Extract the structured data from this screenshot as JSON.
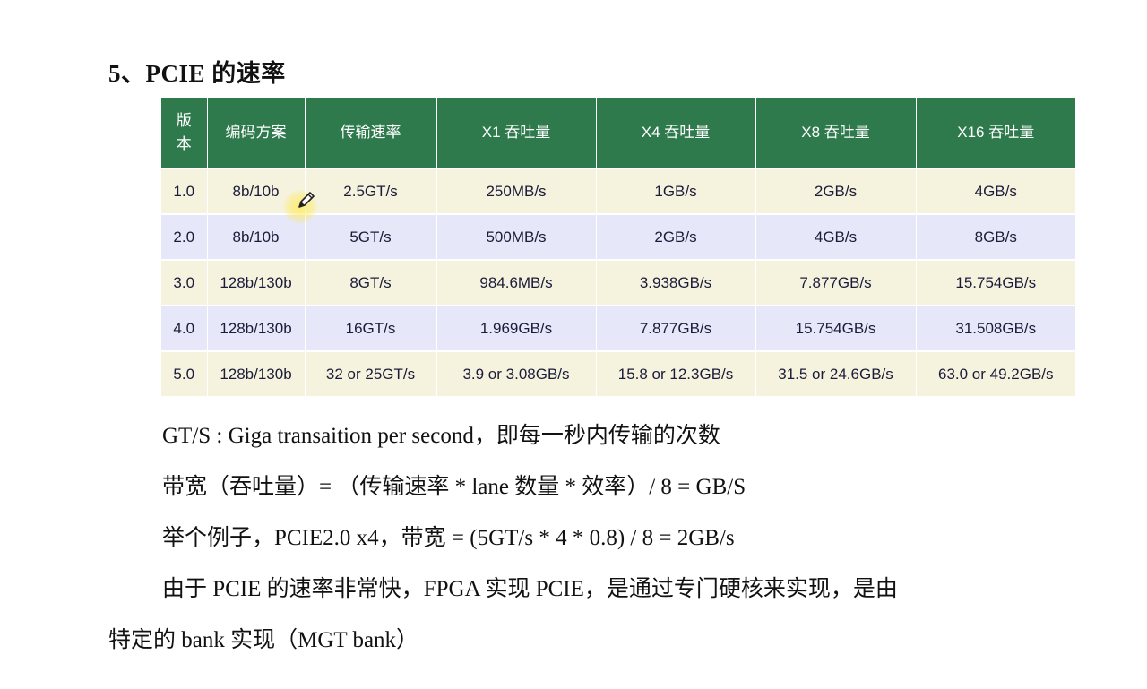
{
  "heading": "5、PCIE 的速率",
  "table": {
    "headers": [
      "版\n本",
      "编码方案",
      "传输速率",
      "X1 吞吐量",
      "X4 吞吐量",
      "X8 吞吐量",
      "X16 吞吐量"
    ],
    "rows": [
      [
        "1.0",
        "8b/10b",
        "2.5GT/s",
        "250MB/s",
        "1GB/s",
        "2GB/s",
        "4GB/s"
      ],
      [
        "2.0",
        "8b/10b",
        "5GT/s",
        "500MB/s",
        "2GB/s",
        "4GB/s",
        "8GB/s"
      ],
      [
        "3.0",
        "128b/130b",
        "8GT/s",
        "984.6MB/s",
        "3.938GB/s",
        "7.877GB/s",
        "15.754GB/s"
      ],
      [
        "4.0",
        "128b/130b",
        "16GT/s",
        "1.969GB/s",
        "7.877GB/s",
        "15.754GB/s",
        "31.508GB/s"
      ],
      [
        "5.0",
        "128b/130b",
        "32 or 25GT/s",
        "3.9 or 3.08GB/s",
        "15.8 or 12.3GB/s",
        "31.5 or 24.6GB/s",
        "63.0 or 49.2GB/s"
      ]
    ],
    "colors": {
      "header_bg": "#2e7a4c",
      "row_odd_bg": "#f5f2de",
      "row_even_bg": "#e6e7f8"
    }
  },
  "notes": {
    "line1": "GT/S : Giga transaition per second，即每一秒内传输的次数",
    "line2": "带宽（吞吐量）= （传输速率 * lane 数量 * 效率）/ 8 =    GB/S",
    "line3": "举个例子，PCIE2.0 x4，带宽 = (5GT/s    * 4 *    0.8)    /    8 = 2GB/s",
    "line4": "由于 PCIE 的速率非常快，FPGA 实现 PCIE，是通过专门硬核来实现，是由",
    "line5": "特定的 bank 实现（MGT bank）"
  },
  "cursor_icon": "pencil-icon"
}
